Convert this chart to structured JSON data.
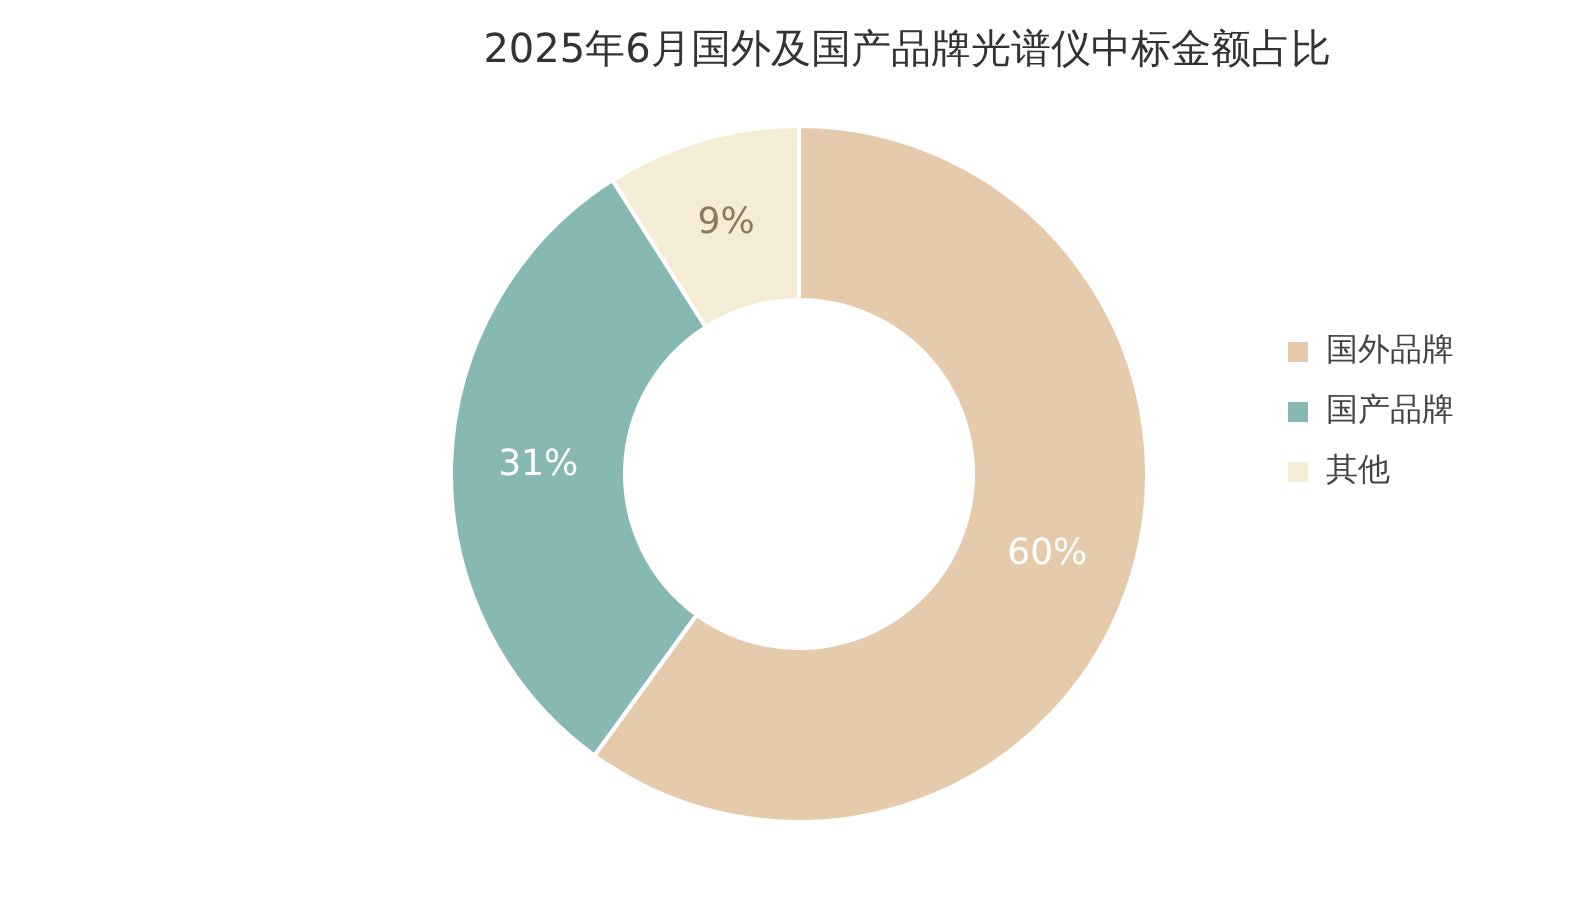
{
  "chart_data": {
    "type": "donut",
    "title": "2025年6月国外及国产品牌光谱仪中标金额占比",
    "categories": [
      "国外品牌",
      "国产品牌",
      "其他"
    ],
    "values": [
      60,
      31,
      9
    ],
    "colors": [
      "#e5cbab",
      "#88b8b4",
      "#f5ecd5"
    ],
    "value_labels": [
      "60%",
      "31%",
      "9%"
    ],
    "legend": "right"
  }
}
